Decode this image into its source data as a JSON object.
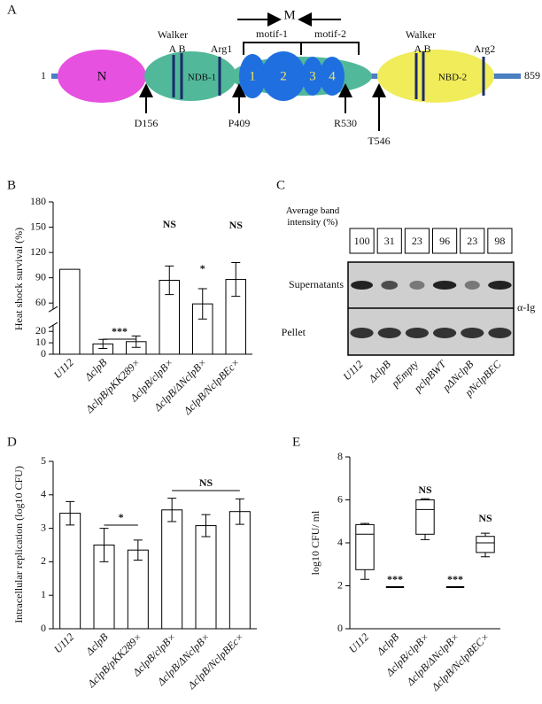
{
  "panel_a": {
    "panel_label": "A",
    "start": "1",
    "end": "859",
    "n_domain": "N",
    "walker_1": "Walker",
    "ab_1": "A B",
    "nbd1": "NDB-1",
    "arg1": "Arg1",
    "m": "M",
    "motif1": "motif-1",
    "motif2": "motif-2",
    "motifs": [
      "1",
      "2",
      "3",
      "4"
    ],
    "walker_2": "Walker",
    "ab_2": "A B",
    "nbd2": "NBD-2",
    "arg2": "Arg2",
    "sites": [
      "D156",
      "P409",
      "R530",
      "T546"
    ]
  },
  "panel_c": {
    "panel_label": "C",
    "header": "Average band intensity (%)",
    "intensities": [
      "100",
      "31",
      "23",
      "96",
      "23",
      "98"
    ],
    "supernatants": "Supernatants",
    "pellet": "Pellet",
    "antibody": "α-Ig",
    "lanes": [
      "U112",
      "ΔclpB",
      "pEmpty",
      "pclpBWT",
      "pΔNclpB",
      "pNclpBEC"
    ]
  },
  "chart_data": [
    {
      "type": "bar",
      "panel_label": "B",
      "ylabel": "Heat shock survival (%)",
      "categories": [
        "U112",
        "ΔclpB",
        "ΔclpB/pKK289×",
        "ΔclpB/clpB×",
        "ΔclpB/ΔNclpB×",
        "ΔclpB/NclpBEc×"
      ],
      "values": [
        100,
        9,
        11,
        87,
        59,
        88
      ],
      "errors": [
        0,
        4,
        5,
        17,
        18,
        20
      ],
      "ylim": [
        0,
        180
      ],
      "ybreak": [
        20,
        60
      ],
      "yticks": [
        0,
        10,
        20,
        60,
        90,
        120,
        150,
        180
      ],
      "annotations": [
        "***",
        "NS",
        "*",
        "NS"
      ]
    },
    {
      "type": "bar",
      "panel_label": "D",
      "ylabel": "Intracellular replication (log10 CFU)",
      "categories": [
        "U112",
        "ΔclpB",
        "ΔclpB/pKK289×",
        "ΔclpB/clpB×",
        "ΔclpB/ΔNclpB×",
        "ΔclpB/NclpBEc×"
      ],
      "values": [
        3.45,
        2.5,
        2.35,
        3.55,
        3.08,
        3.5
      ],
      "errors": [
        0.35,
        0.5,
        0.3,
        0.35,
        0.33,
        0.38
      ],
      "ylim": [
        0,
        5
      ],
      "yticks": [
        0,
        1,
        2,
        3,
        4,
        5
      ],
      "annotations": [
        "*",
        "NS"
      ]
    },
    {
      "type": "box",
      "panel_label": "E",
      "ylabel": "log10 CFU/ ml",
      "categories": [
        "U112",
        "ΔclpB",
        "ΔclpB/clpB×",
        "ΔclpB/ΔNclpB×",
        "ΔclpB/NclpBEC×"
      ],
      "min": [
        2.3,
        null,
        4.15,
        null,
        3.35
      ],
      "q1": [
        2.75,
        null,
        4.4,
        null,
        3.55
      ],
      "median": [
        4.4,
        null,
        5.55,
        null,
        4.0
      ],
      "q3": [
        4.85,
        null,
        6.0,
        null,
        4.3
      ],
      "max": [
        4.9,
        null,
        6.05,
        null,
        4.45
      ],
      "ylim": [
        0,
        8
      ],
      "yticks": [
        0,
        2,
        4,
        6,
        8
      ],
      "annotations": [
        "***",
        "***",
        "NS",
        "NS"
      ]
    }
  ]
}
